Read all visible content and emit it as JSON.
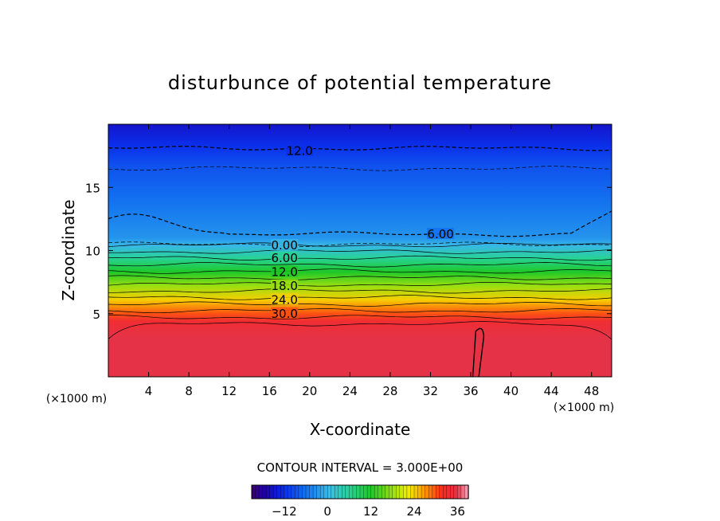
{
  "chart_data": {
    "type": "contour",
    "title": "disturbunce of potential temperature",
    "xlabel": "X-coordinate",
    "ylabel": "Z-coordinate",
    "x_unit": "(×1000 m)",
    "z_unit": "(×1000 m)",
    "xlim": [
      0,
      50
    ],
    "ylim": [
      0,
      20
    ],
    "x_ticks": [
      4,
      8,
      12,
      16,
      20,
      24,
      28,
      32,
      36,
      40,
      44,
      48
    ],
    "y_ticks": [
      5,
      10,
      15
    ],
    "contour_interval_label": "CONTOUR INTERVAL = 3.000E+00",
    "contour_interval": 3.0,
    "contour_labels": [
      {
        "text": "12.0",
        "value": -12.0,
        "x": 19.0,
        "z": 17.9,
        "style": "dashed"
      },
      {
        "text": "6.00",
        "value": -6.0,
        "x": 33.0,
        "z": 11.3,
        "style": "dashed"
      },
      {
        "text": "0.00",
        "value": 0.0,
        "x": 17.5,
        "z": 10.4,
        "style": "solid"
      },
      {
        "text": "6.00",
        "value": 6.0,
        "x": 17.5,
        "z": 9.4,
        "style": "solid"
      },
      {
        "text": "12.0",
        "value": 12.0,
        "x": 17.5,
        "z": 8.3,
        "style": "solid"
      },
      {
        "text": "18.0",
        "value": 18.0,
        "x": 17.5,
        "z": 7.2,
        "style": "solid"
      },
      {
        "text": "24.0",
        "value": 24.0,
        "x": 17.5,
        "z": 6.1,
        "style": "solid"
      },
      {
        "text": "30.0",
        "value": 30.0,
        "x": 17.5,
        "z": 5.0,
        "style": "solid"
      }
    ],
    "colorbar": {
      "min": -21,
      "max": 39,
      "tick_values": [
        -12,
        0,
        12,
        24,
        36
      ],
      "tick_labels": [
        "−12",
        "0",
        "12",
        "24",
        "36"
      ]
    },
    "field_profile": [
      {
        "z": 0,
        "value": 36
      },
      {
        "z": 3.2,
        "value": 36
      },
      {
        "z": 4.4,
        "value": 34
      },
      {
        "z": 5.0,
        "value": 30
      },
      {
        "z": 6.1,
        "value": 24
      },
      {
        "z": 7.2,
        "value": 18
      },
      {
        "z": 8.3,
        "value": 12
      },
      {
        "z": 9.4,
        "value": 6
      },
      {
        "z": 10.4,
        "value": 0
      },
      {
        "z": 11.0,
        "value": -3
      },
      {
        "z": 14.0,
        "value": -6
      },
      {
        "z": 16.8,
        "value": -9
      },
      {
        "z": 18.3,
        "value": -12
      },
      {
        "z": 20.0,
        "value": -15
      }
    ]
  }
}
